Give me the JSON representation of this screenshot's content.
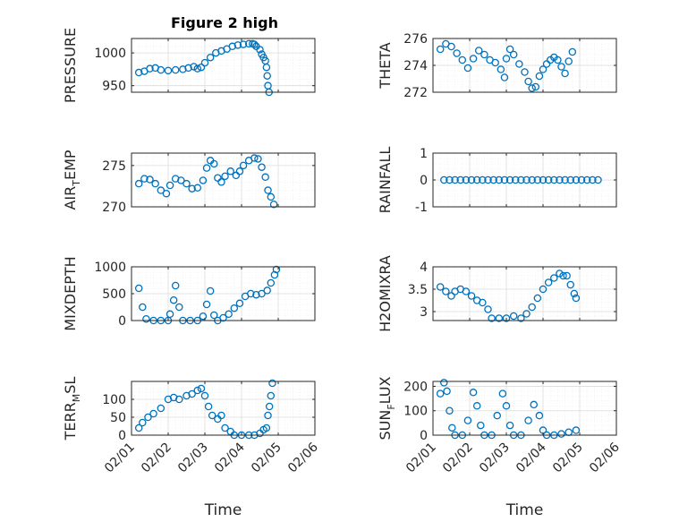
{
  "figure": {
    "title": "Figure 2 high",
    "marker_color": "#0072bd",
    "axis_color": "#262626",
    "grid_color": "#dcdcdc"
  },
  "chart_data": [
    {
      "type": "scatter",
      "id": "pressure",
      "ylabel": "PRESSURE",
      "title": "Figure 2 high",
      "ylim": [
        940,
        1022
      ],
      "yticks": [
        950,
        1000
      ],
      "yticklabels": [
        "950",
        "1000"
      ],
      "xlim": [
        0,
        5
      ],
      "xticks": [
        0,
        1,
        2,
        3,
        4,
        5
      ],
      "xticklabels": [],
      "xlabel": "",
      "grid": true,
      "points": [
        [
          0.2,
          970
        ],
        [
          0.35,
          972
        ],
        [
          0.5,
          976
        ],
        [
          0.65,
          977
        ],
        [
          0.8,
          974
        ],
        [
          1.0,
          973
        ],
        [
          1.2,
          974
        ],
        [
          1.4,
          975
        ],
        [
          1.55,
          977
        ],
        [
          1.7,
          979
        ],
        [
          1.8,
          976
        ],
        [
          1.9,
          978
        ],
        [
          2.0,
          985
        ],
        [
          2.15,
          993
        ],
        [
          2.3,
          1000
        ],
        [
          2.45,
          1003
        ],
        [
          2.6,
          1006
        ],
        [
          2.75,
          1010
        ],
        [
          2.9,
          1012
        ],
        [
          3.05,
          1013
        ],
        [
          3.2,
          1014
        ],
        [
          3.3,
          1014
        ],
        [
          3.35,
          1013
        ],
        [
          3.4,
          1010
        ],
        [
          3.5,
          1005
        ],
        [
          3.55,
          998
        ],
        [
          3.6,
          993
        ],
        [
          3.65,
          988
        ],
        [
          3.68,
          978
        ],
        [
          3.7,
          965
        ],
        [
          3.72,
          950
        ],
        [
          3.75,
          940
        ]
      ]
    },
    {
      "type": "scatter",
      "id": "theta",
      "ylabel": "THETA",
      "ylim": [
        272,
        276
      ],
      "yticks": [
        272,
        274,
        276
      ],
      "yticklabels": [
        "272",
        "274",
        "276"
      ],
      "xlim": [
        0,
        5
      ],
      "xticks": [
        0,
        1,
        2,
        3,
        4,
        5
      ],
      "xticklabels": [],
      "xlabel": "",
      "grid": true,
      "points": [
        [
          0.2,
          275.2
        ],
        [
          0.35,
          275.6
        ],
        [
          0.5,
          275.4
        ],
        [
          0.65,
          274.9
        ],
        [
          0.8,
          274.4
        ],
        [
          0.95,
          273.8
        ],
        [
          1.1,
          274.5
        ],
        [
          1.25,
          275.1
        ],
        [
          1.4,
          274.8
        ],
        [
          1.55,
          274.4
        ],
        [
          1.7,
          274.2
        ],
        [
          1.85,
          273.7
        ],
        [
          1.95,
          273.1
        ],
        [
          2.0,
          274.5
        ],
        [
          2.1,
          275.2
        ],
        [
          2.2,
          274.8
        ],
        [
          2.35,
          274.1
        ],
        [
          2.5,
          273.5
        ],
        [
          2.6,
          272.8
        ],
        [
          2.7,
          272.3
        ],
        [
          2.8,
          272.4
        ],
        [
          2.9,
          273.2
        ],
        [
          3.0,
          273.7
        ],
        [
          3.1,
          274.1
        ],
        [
          3.2,
          274.4
        ],
        [
          3.3,
          274.6
        ],
        [
          3.4,
          274.4
        ],
        [
          3.5,
          273.9
        ],
        [
          3.6,
          273.4
        ],
        [
          3.7,
          274.3
        ],
        [
          3.8,
          275.0
        ]
      ]
    },
    {
      "type": "scatter",
      "id": "air_temp",
      "ylabel": "AIR_TEMP",
      "ylabel_main": "AIR",
      "ylabel_sub": "T",
      "ylabel_rest": "EMP",
      "ylim": [
        270,
        276.5
      ],
      "yticks": [
        270,
        275
      ],
      "yticklabels": [
        "270",
        "275"
      ],
      "xlim": [
        0,
        5
      ],
      "xticks": [
        0,
        1,
        2,
        3,
        4,
        5
      ],
      "xticklabels": [],
      "xlabel": "",
      "grid": true,
      "points": [
        [
          0.2,
          272.8
        ],
        [
          0.35,
          273.4
        ],
        [
          0.5,
          273.3
        ],
        [
          0.65,
          272.8
        ],
        [
          0.8,
          272.0
        ],
        [
          0.95,
          271.6
        ],
        [
          1.05,
          272.6
        ],
        [
          1.2,
          273.4
        ],
        [
          1.35,
          273.2
        ],
        [
          1.5,
          272.8
        ],
        [
          1.65,
          272.2
        ],
        [
          1.8,
          272.3
        ],
        [
          1.95,
          273.2
        ],
        [
          2.05,
          274.7
        ],
        [
          2.15,
          275.6
        ],
        [
          2.25,
          275.2
        ],
        [
          2.35,
          273.5
        ],
        [
          2.45,
          273.0
        ],
        [
          2.55,
          273.7
        ],
        [
          2.7,
          274.3
        ],
        [
          2.85,
          273.8
        ],
        [
          2.95,
          274.3
        ],
        [
          3.05,
          275.0
        ],
        [
          3.2,
          275.6
        ],
        [
          3.35,
          275.9
        ],
        [
          3.45,
          275.8
        ],
        [
          3.55,
          274.8
        ],
        [
          3.65,
          273.6
        ],
        [
          3.72,
          272.0
        ],
        [
          3.8,
          271.2
        ],
        [
          3.88,
          270.3
        ]
      ]
    },
    {
      "type": "scatter",
      "id": "rainfall",
      "ylabel": "RAINFALL",
      "ylim": [
        -1,
        1
      ],
      "yticks": [
        -1,
        0,
        1
      ],
      "yticklabels": [
        "-1",
        "0",
        "1"
      ],
      "xlim": [
        0,
        5
      ],
      "xticks": [
        0,
        1,
        2,
        3,
        4,
        5
      ],
      "xticklabels": [],
      "xlabel": "",
      "grid": true,
      "points": [
        [
          0.3,
          0
        ],
        [
          0.45,
          0
        ],
        [
          0.6,
          0
        ],
        [
          0.75,
          0
        ],
        [
          0.9,
          0
        ],
        [
          1.05,
          0
        ],
        [
          1.2,
          0
        ],
        [
          1.35,
          0
        ],
        [
          1.5,
          0
        ],
        [
          1.65,
          0
        ],
        [
          1.8,
          0
        ],
        [
          1.95,
          0
        ],
        [
          2.1,
          0
        ],
        [
          2.25,
          0
        ],
        [
          2.4,
          0
        ],
        [
          2.55,
          0
        ],
        [
          2.7,
          0
        ],
        [
          2.85,
          0
        ],
        [
          3.0,
          0
        ],
        [
          3.15,
          0
        ],
        [
          3.3,
          0
        ],
        [
          3.45,
          0
        ],
        [
          3.6,
          0
        ],
        [
          3.75,
          0
        ],
        [
          3.9,
          0
        ],
        [
          4.05,
          0
        ],
        [
          4.2,
          0
        ],
        [
          4.35,
          0
        ],
        [
          4.5,
          0
        ]
      ]
    },
    {
      "type": "scatter",
      "id": "mixdepth",
      "ylabel": "MIXDEPTH",
      "ylim": [
        0,
        1000
      ],
      "yticks": [
        0,
        500,
        1000
      ],
      "yticklabels": [
        "0",
        "500",
        "1000"
      ],
      "xlim": [
        0,
        5
      ],
      "xticks": [
        0,
        1,
        2,
        3,
        4,
        5
      ],
      "xticklabels": [],
      "xlabel": "",
      "grid": true,
      "points": [
        [
          0.2,
          600
        ],
        [
          0.3,
          250
        ],
        [
          0.4,
          30
        ],
        [
          0.6,
          0
        ],
        [
          0.8,
          0
        ],
        [
          1.0,
          0
        ],
        [
          1.05,
          120
        ],
        [
          1.15,
          380
        ],
        [
          1.2,
          650
        ],
        [
          1.3,
          250
        ],
        [
          1.4,
          0
        ],
        [
          1.6,
          0
        ],
        [
          1.8,
          0
        ],
        [
          1.95,
          80
        ],
        [
          2.05,
          300
        ],
        [
          2.15,
          550
        ],
        [
          2.25,
          100
        ],
        [
          2.35,
          0
        ],
        [
          2.5,
          50
        ],
        [
          2.65,
          120
        ],
        [
          2.8,
          230
        ],
        [
          2.95,
          320
        ],
        [
          3.1,
          450
        ],
        [
          3.25,
          500
        ],
        [
          3.4,
          480
        ],
        [
          3.55,
          500
        ],
        [
          3.7,
          560
        ],
        [
          3.8,
          700
        ],
        [
          3.9,
          850
        ],
        [
          3.95,
          950
        ]
      ]
    },
    {
      "type": "scatter",
      "id": "h2omixra",
      "ylabel": "H2OMIXRA",
      "ylim": [
        2.8,
        4
      ],
      "yticks": [
        3,
        3.5,
        4
      ],
      "yticklabels": [
        "3",
        "3.5",
        "4"
      ],
      "xlim": [
        0,
        5
      ],
      "xticks": [
        0,
        1,
        2,
        3,
        4,
        5
      ],
      "xticklabels": [],
      "xlabel": "",
      "grid": true,
      "points": [
        [
          0.2,
          3.55
        ],
        [
          0.35,
          3.45
        ],
        [
          0.5,
          3.35
        ],
        [
          0.6,
          3.45
        ],
        [
          0.75,
          3.5
        ],
        [
          0.9,
          3.45
        ],
        [
          1.05,
          3.35
        ],
        [
          1.2,
          3.25
        ],
        [
          1.35,
          3.2
        ],
        [
          1.5,
          3.05
        ],
        [
          1.6,
          2.85
        ],
        [
          1.8,
          2.85
        ],
        [
          2.0,
          2.85
        ],
        [
          2.2,
          2.9
        ],
        [
          2.4,
          2.85
        ],
        [
          2.55,
          2.95
        ],
        [
          2.7,
          3.1
        ],
        [
          2.85,
          3.3
        ],
        [
          3.0,
          3.5
        ],
        [
          3.15,
          3.65
        ],
        [
          3.3,
          3.75
        ],
        [
          3.45,
          3.85
        ],
        [
          3.55,
          3.8
        ],
        [
          3.65,
          3.8
        ],
        [
          3.75,
          3.6
        ],
        [
          3.85,
          3.4
        ],
        [
          3.9,
          3.3
        ]
      ]
    },
    {
      "type": "scatter",
      "id": "terr_msl",
      "ylabel": "TERR_MSL",
      "ylabel_main": "TERR",
      "ylabel_sub": "M",
      "ylabel_rest": "SL",
      "ylim": [
        0,
        150
      ],
      "yticks": [
        0,
        50,
        100
      ],
      "yticklabels": [
        "0",
        "50",
        "100"
      ],
      "xlim": [
        0,
        5
      ],
      "xticks": [
        0,
        1,
        2,
        3,
        4,
        5
      ],
      "xticklabels": [
        "02/01",
        "02/02",
        "02/03",
        "02/04",
        "02/05",
        "02/06"
      ],
      "xlabel": "Time",
      "grid": true,
      "points": [
        [
          0.2,
          20
        ],
        [
          0.3,
          35
        ],
        [
          0.45,
          50
        ],
        [
          0.6,
          60
        ],
        [
          0.8,
          75
        ],
        [
          1.0,
          100
        ],
        [
          1.15,
          105
        ],
        [
          1.3,
          100
        ],
        [
          1.5,
          110
        ],
        [
          1.65,
          115
        ],
        [
          1.8,
          125
        ],
        [
          1.9,
          130
        ],
        [
          2.0,
          110
        ],
        [
          2.1,
          80
        ],
        [
          2.2,
          55
        ],
        [
          2.35,
          45
        ],
        [
          2.45,
          55
        ],
        [
          2.55,
          20
        ],
        [
          2.7,
          10
        ],
        [
          2.8,
          0
        ],
        [
          3.0,
          0
        ],
        [
          3.2,
          0
        ],
        [
          3.35,
          0
        ],
        [
          3.5,
          5
        ],
        [
          3.6,
          15
        ],
        [
          3.68,
          20
        ],
        [
          3.72,
          55
        ],
        [
          3.76,
          80
        ],
        [
          3.8,
          110
        ],
        [
          3.84,
          145
        ]
      ]
    },
    {
      "type": "scatter",
      "id": "sun_flux",
      "ylabel": "SUN_FLUX",
      "ylabel_main": "SUN",
      "ylabel_sub": "F",
      "ylabel_rest": "LUX",
      "ylim": [
        0,
        220
      ],
      "yticks": [
        0,
        100,
        200
      ],
      "yticklabels": [
        "0",
        "100",
        "200"
      ],
      "xlim": [
        0,
        5
      ],
      "xticks": [
        0,
        1,
        2,
        3,
        4,
        5
      ],
      "xticklabels": [
        "02/01",
        "02/02",
        "02/03",
        "02/04",
        "02/05",
        "02/06"
      ],
      "xlabel": "Time",
      "grid": true,
      "points": [
        [
          0.2,
          170
        ],
        [
          0.3,
          215
        ],
        [
          0.38,
          180
        ],
        [
          0.45,
          100
        ],
        [
          0.52,
          30
        ],
        [
          0.6,
          0
        ],
        [
          0.8,
          0
        ],
        [
          0.95,
          60
        ],
        [
          1.1,
          175
        ],
        [
          1.2,
          120
        ],
        [
          1.3,
          40
        ],
        [
          1.4,
          0
        ],
        [
          1.6,
          0
        ],
        [
          1.75,
          80
        ],
        [
          1.9,
          170
        ],
        [
          2.0,
          120
        ],
        [
          2.1,
          40
        ],
        [
          2.2,
          0
        ],
        [
          2.4,
          0
        ],
        [
          2.6,
          60
        ],
        [
          2.75,
          125
        ],
        [
          2.9,
          80
        ],
        [
          3.0,
          20
        ],
        [
          3.1,
          0
        ],
        [
          3.3,
          0
        ],
        [
          3.5,
          5
        ],
        [
          3.7,
          12
        ],
        [
          3.9,
          20
        ]
      ]
    }
  ]
}
